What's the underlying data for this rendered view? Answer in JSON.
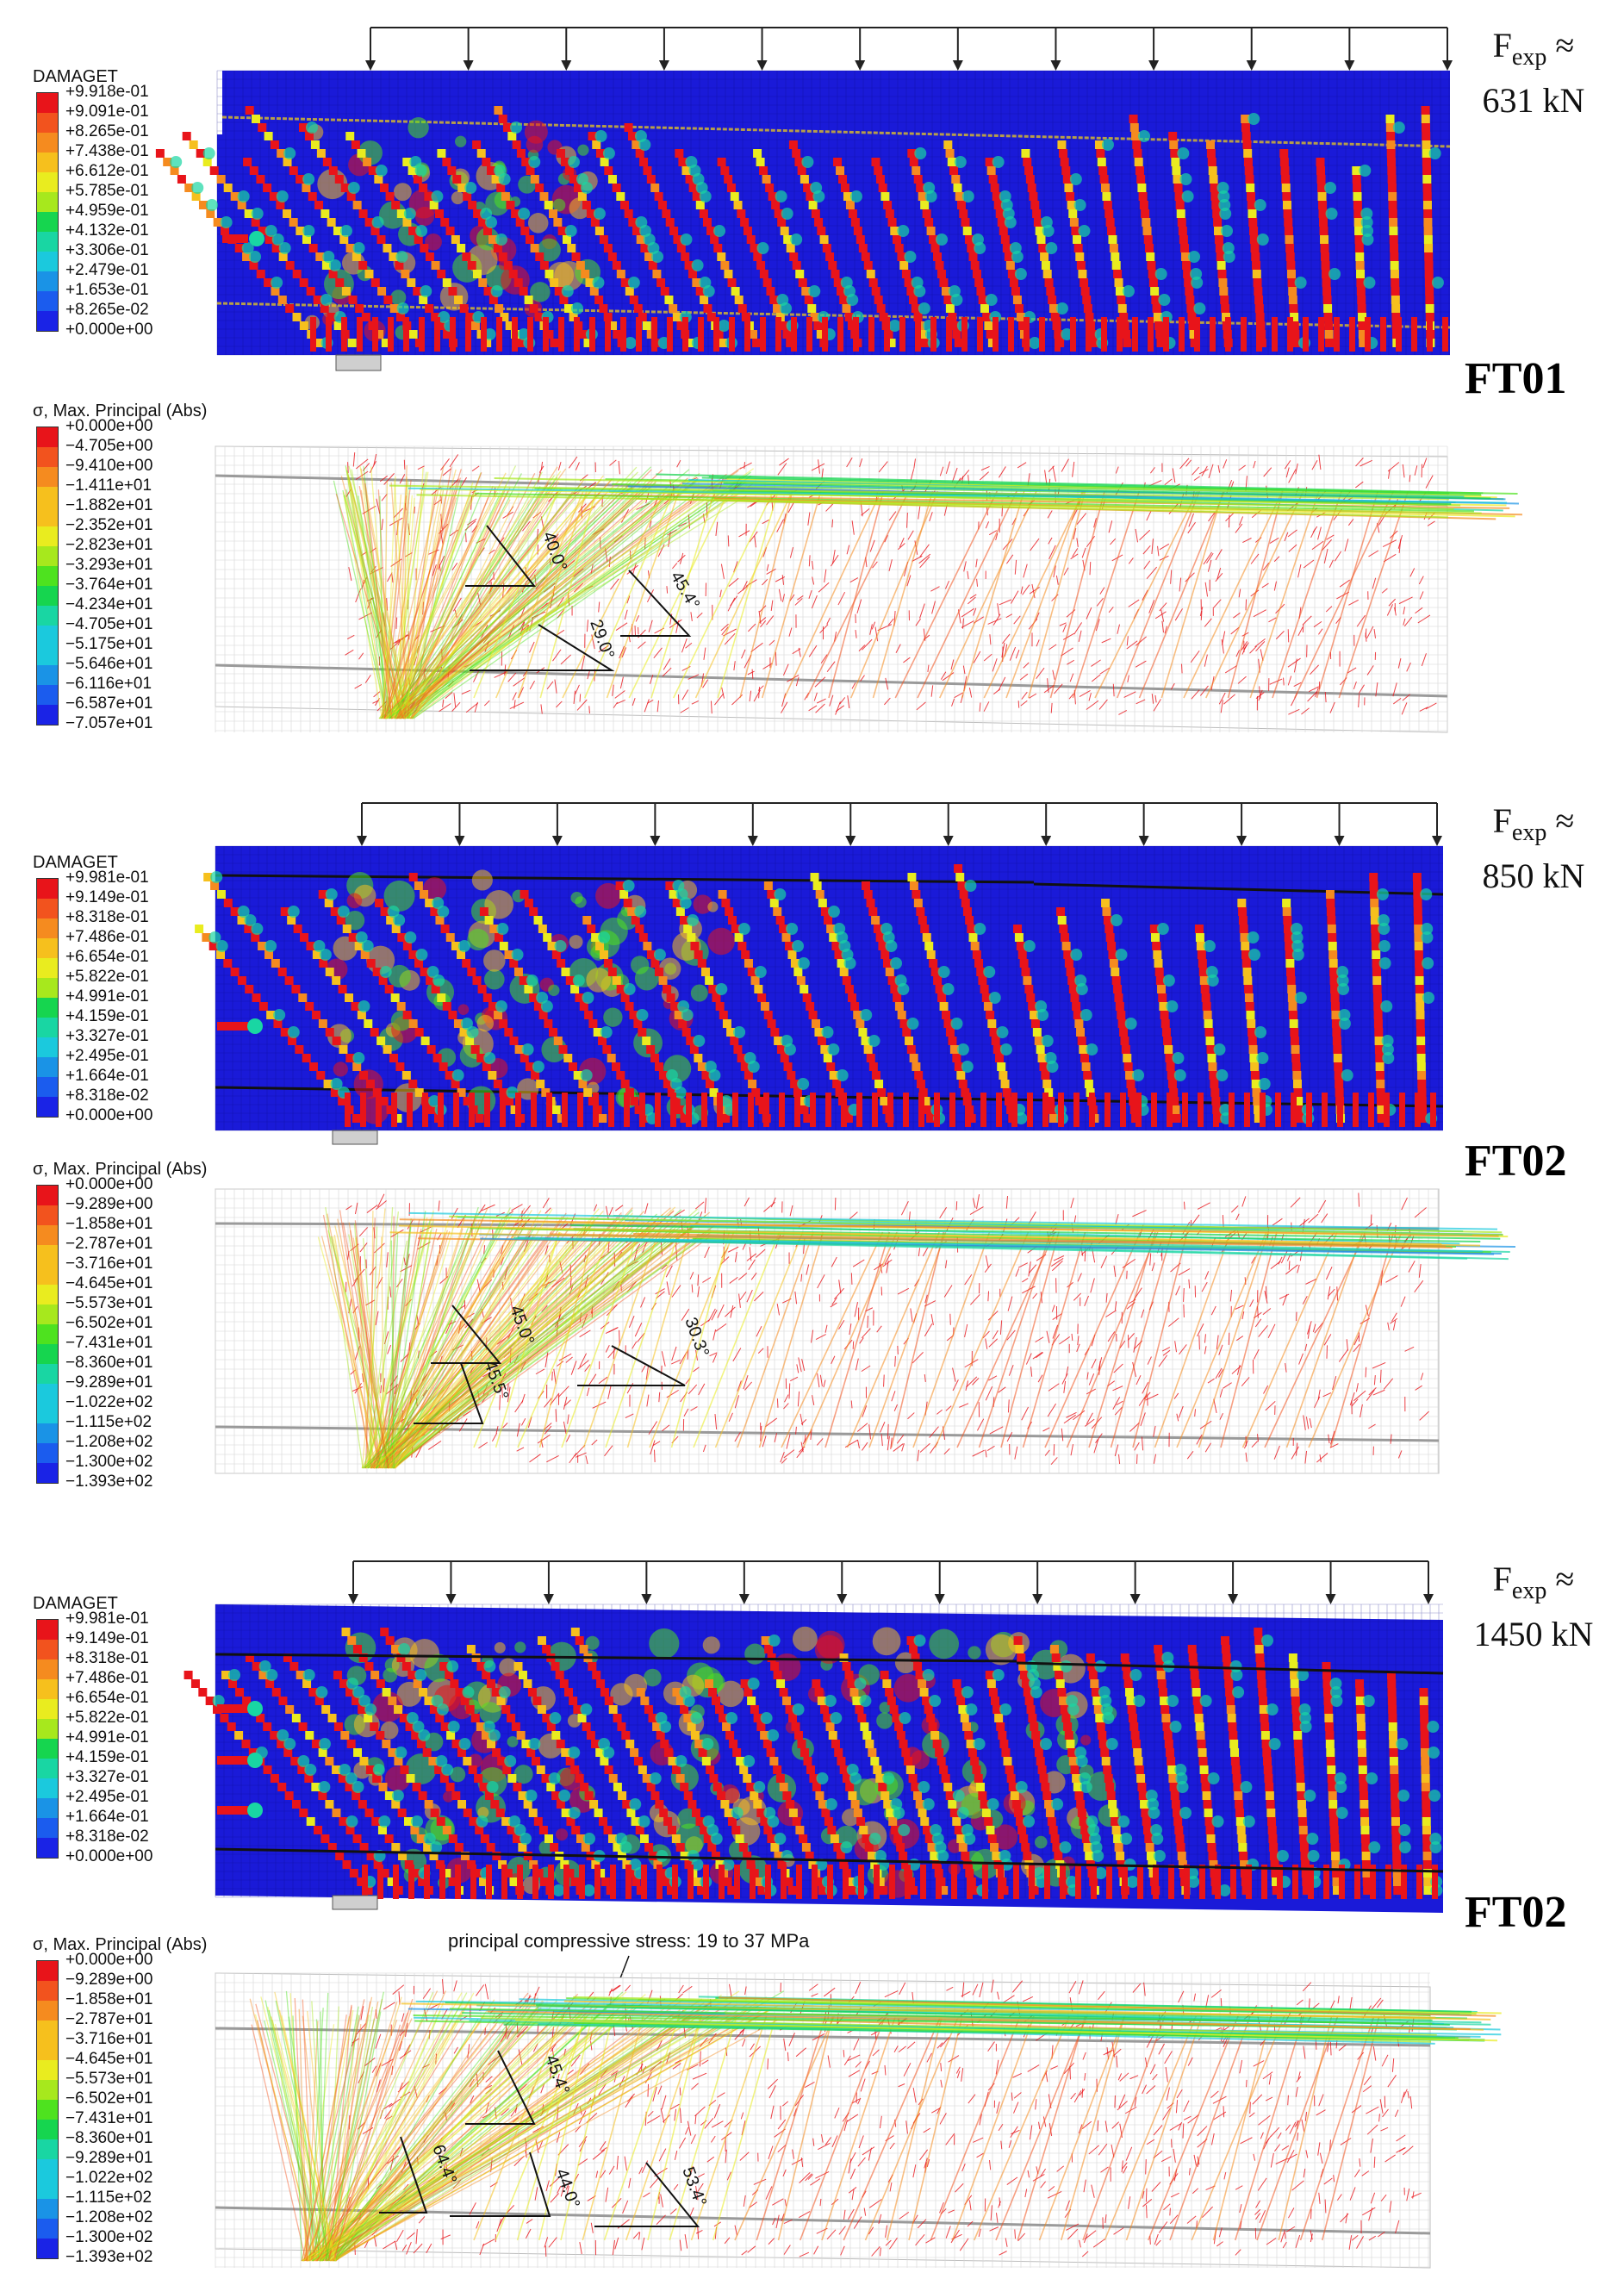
{
  "legend_colors": [
    "#e8141a",
    "#f2531e",
    "#f58b1f",
    "#f6c01d",
    "#e9ec1f",
    "#a7e81d",
    "#4ee21f",
    "#16d54f",
    "#19d6a3",
    "#1bc9dd",
    "#1a93e6",
    "#1b5cee",
    "#1a23e6"
  ],
  "panels": [
    {
      "force": {
        "symbol": "F",
        "subscript": "exp",
        "approx": "≈",
        "value": "631 kN"
      },
      "specimen": "FT01",
      "damage_legend": {
        "title": "DAMAGET",
        "ticks": [
          "+9.918e-01",
          "+9.091e-01",
          "+8.265e-01",
          "+7.438e-01",
          "+6.612e-01",
          "+5.785e-01",
          "+4.959e-01",
          "+4.132e-01",
          "+3.306e-01",
          "+2.479e-01",
          "+1.653e-01",
          "+8.265e-02",
          "+0.000e+00"
        ]
      },
      "stress_legend": {
        "title": "σ, Max. Principal (Abs)",
        "ticks": [
          "+0.000e+00",
          "−4.705e+00",
          "−9.410e+00",
          "−1.411e+01",
          "−1.882e+01",
          "−2.352e+01",
          "−2.823e+01",
          "−3.293e+01",
          "−3.764e+01",
          "−4.234e+01",
          "−4.705e+01",
          "−5.175e+01",
          "−5.646e+01",
          "−6.116e+01",
          "−6.587e+01",
          "−7.057e+01"
        ]
      },
      "angles": [
        "40.0°",
        "29.0°",
        "45.4°"
      ],
      "annotation": ""
    },
    {
      "force": {
        "symbol": "F",
        "subscript": "exp",
        "approx": "≈",
        "value": "850 kN"
      },
      "specimen": "FT02",
      "damage_legend": {
        "title": "DAMAGET",
        "ticks": [
          "+9.981e-01",
          "+9.149e-01",
          "+8.318e-01",
          "+7.486e-01",
          "+6.654e-01",
          "+5.822e-01",
          "+4.991e-01",
          "+4.159e-01",
          "+3.327e-01",
          "+2.495e-01",
          "+1.664e-01",
          "+8.318e-02",
          "+0.000e+00"
        ]
      },
      "stress_legend": {
        "title": "σ, Max. Principal (Abs)",
        "ticks": [
          "+0.000e+00",
          "−9.289e+00",
          "−1.858e+01",
          "−2.787e+01",
          "−3.716e+01",
          "−4.645e+01",
          "−5.573e+01",
          "−6.502e+01",
          "−7.431e+01",
          "−8.360e+01",
          "−9.289e+01",
          "−1.022e+02",
          "−1.115e+02",
          "−1.208e+02",
          "−1.300e+02",
          "−1.393e+02"
        ]
      },
      "angles": [
        "45.0°",
        "45.5°",
        "30.3°"
      ],
      "annotation": ""
    },
    {
      "force": {
        "symbol": "F",
        "subscript": "exp",
        "approx": "≈",
        "value": "1450 kN"
      },
      "specimen": "FT02",
      "damage_legend": {
        "title": "DAMAGET",
        "ticks": [
          "+9.981e-01",
          "+9.149e-01",
          "+8.318e-01",
          "+7.486e-01",
          "+6.654e-01",
          "+5.822e-01",
          "+4.991e-01",
          "+4.159e-01",
          "+3.327e-01",
          "+2.495e-01",
          "+1.664e-01",
          "+8.318e-02",
          "+0.000e+00"
        ]
      },
      "stress_legend": {
        "title": "σ, Max. Principal (Abs)",
        "ticks": [
          "+0.000e+00",
          "−9.289e+00",
          "−1.858e+01",
          "−2.787e+01",
          "−3.716e+01",
          "−4.645e+01",
          "−5.573e+01",
          "−6.502e+01",
          "−7.431e+01",
          "−8.360e+01",
          "−9.289e+01",
          "−1.022e+02",
          "−1.115e+02",
          "−1.208e+02",
          "−1.300e+02",
          "−1.393e+02"
        ]
      },
      "angles": [
        "45.4°",
        "64.4°",
        "44.0°",
        "53.4°"
      ],
      "annotation": "principal compressive stress: 19 to 37 MPa"
    }
  ]
}
